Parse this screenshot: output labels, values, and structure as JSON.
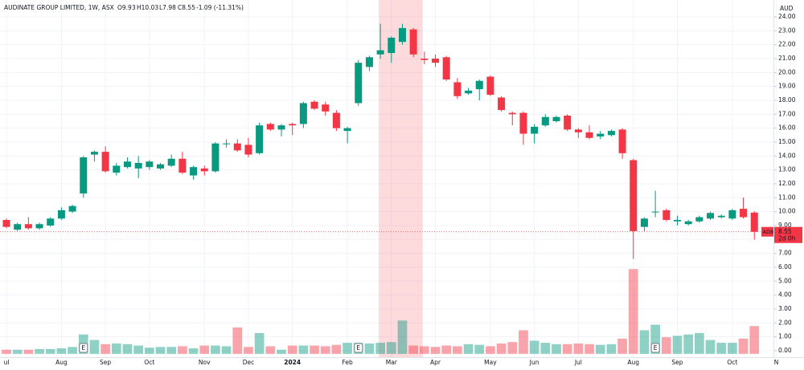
{
  "chart_data": {
    "type": "candlestick",
    "header": {
      "symbol": "AUDINATE GROUP LIMITED, 1W, ASX",
      "open": "O9.93",
      "high": "H10.03",
      "low": "L7.98",
      "close": "C8.55",
      "change": "-1.09 (-11.31%)"
    },
    "currency": "AUD",
    "up_color": "#089981",
    "down_color": "#f23645",
    "open": [
      9.4,
      8.7,
      9.1,
      8.8,
      9.0,
      9.5,
      10.0,
      11.3,
      14.1,
      14.3,
      12.8,
      13.2,
      13.1,
      13.2,
      13.1,
      13.3,
      13.8,
      12.6,
      13.1,
      12.9,
      14.9,
      14.9,
      14.8,
      14.2,
      16.3,
      15.9,
      16.3,
      16.3,
      17.9,
      17.7,
      17.1,
      15.8,
      17.8,
      20.4,
      21.3,
      21.4,
      22.2,
      23.1,
      21.0,
      21.0,
      21.1,
      19.3,
      18.5,
      18.8,
      19.7,
      18.2,
      17.1,
      17.1,
      15.6,
      16.2,
      16.5,
      16.9,
      15.9,
      15.7,
      15.4,
      15.5,
      15.9,
      13.7,
      8.9,
      10.0,
      10.1,
      9.3,
      9.1,
      9.3,
      9.5,
      9.6,
      9.5,
      10.2,
      9.93
    ],
    "high": [
      9.5,
      9.2,
      9.6,
      9.2,
      9.6,
      10.3,
      10.5,
      14.0,
      14.4,
      14.7,
      13.5,
      13.9,
      14.0,
      13.7,
      13.5,
      14.1,
      14.3,
      13.3,
      13.3,
      15.0,
      15.2,
      15.2,
      15.3,
      16.4,
      16.4,
      16.3,
      16.4,
      17.9,
      18.0,
      17.9,
      17.3,
      16.1,
      20.9,
      21.2,
      23.5,
      22.6,
      23.5,
      23.2,
      21.5,
      21.3,
      21.2,
      19.6,
      18.9,
      19.5,
      19.8,
      18.3,
      17.2,
      17.2,
      16.3,
      17.0,
      16.9,
      17.0,
      16.0,
      16.2,
      15.8,
      15.9,
      16.0,
      13.8,
      9.6,
      11.5,
      10.2,
      9.7,
      9.4,
      9.7,
      10.0,
      9.8,
      10.2,
      11.0,
      10.03
    ],
    "low": [
      8.8,
      8.6,
      8.7,
      8.7,
      8.9,
      9.4,
      9.9,
      11.0,
      13.6,
      12.8,
      12.6,
      13.1,
      12.4,
      13.0,
      13.0,
      13.2,
      12.7,
      12.3,
      12.6,
      12.8,
      14.6,
      14.3,
      13.9,
      14.1,
      15.8,
      15.4,
      15.5,
      16.0,
      17.3,
      16.9,
      15.8,
      14.9,
      17.6,
      20.1,
      21.0,
      20.7,
      22.0,
      21.1,
      20.6,
      20.4,
      19.4,
      18.1,
      18.4,
      18.0,
      18.3,
      17.2,
      16.2,
      14.8,
      14.9,
      16.1,
      16.4,
      15.8,
      15.3,
      15.2,
      15.2,
      15.4,
      13.8,
      6.6,
      8.6,
      9.6,
      9.3,
      9.0,
      9.0,
      9.2,
      9.4,
      9.5,
      9.4,
      9.5,
      7.98
    ],
    "close": [
      8.9,
      9.1,
      8.8,
      9.1,
      9.5,
      10.1,
      10.4,
      13.9,
      14.3,
      12.9,
      13.3,
      13.6,
      13.5,
      13.6,
      13.4,
      13.8,
      12.8,
      13.2,
      12.9,
      14.9,
      14.9,
      14.4,
      14.1,
      16.2,
      15.9,
      16.2,
      16.2,
      17.8,
      17.4,
      17.2,
      16.0,
      16.0,
      20.7,
      21.1,
      21.6,
      22.5,
      23.2,
      21.3,
      20.9,
      20.7,
      19.5,
      18.3,
      18.7,
      19.4,
      18.4,
      17.3,
      17.0,
      15.6,
      16.1,
      16.8,
      16.8,
      15.9,
      15.7,
      15.3,
      15.6,
      15.8,
      14.2,
      8.6,
      9.5,
      10.0,
      9.4,
      9.4,
      9.3,
      9.6,
      9.9,
      9.7,
      10.1,
      9.6,
      8.55
    ],
    "volume": [
      0.3,
      0.3,
      0.3,
      0.35,
      0.35,
      0.4,
      0.5,
      1.4,
      1.0,
      0.7,
      0.75,
      0.7,
      0.6,
      0.45,
      0.5,
      0.5,
      0.55,
      0.4,
      0.6,
      0.6,
      0.55,
      1.9,
      0.5,
      1.5,
      0.55,
      0.3,
      0.6,
      0.6,
      0.6,
      0.55,
      0.65,
      0.8,
      0.8,
      0.75,
      0.8,
      0.85,
      2.4,
      0.6,
      0.55,
      0.5,
      0.6,
      0.55,
      0.7,
      0.65,
      0.55,
      0.75,
      0.85,
      1.7,
      0.95,
      0.8,
      0.7,
      0.7,
      0.75,
      0.7,
      0.65,
      0.7,
      1.1,
      6.1,
      1.7,
      2.1,
      1.2,
      1.3,
      1.4,
      1.5,
      1.0,
      0.8,
      0.8,
      1.1,
      2.0
    ],
    "x_labels": [
      {
        "index": 0,
        "label": "ul"
      },
      {
        "index": 5,
        "label": "Aug"
      },
      {
        "index": 9,
        "label": "Sep"
      },
      {
        "index": 13,
        "label": "Oct"
      },
      {
        "index": 18,
        "label": "Nov"
      },
      {
        "index": 22,
        "label": "Dec"
      },
      {
        "index": 26,
        "label": "2024"
      },
      {
        "index": 31,
        "label": "Feb"
      },
      {
        "index": 35,
        "label": "Mar"
      },
      {
        "index": 39,
        "label": "Apr"
      },
      {
        "index": 44,
        "label": "May"
      },
      {
        "index": 48,
        "label": "Jun"
      },
      {
        "index": 52,
        "label": "Jul"
      },
      {
        "index": 57,
        "label": "Aug"
      },
      {
        "index": 61,
        "label": "Sep"
      },
      {
        "index": 66,
        "label": "Oct"
      },
      {
        "index": 70,
        "label": "N"
      }
    ],
    "earnings": [
      {
        "index": 7,
        "label": "E"
      },
      {
        "index": 32,
        "label": "E"
      },
      {
        "index": 59,
        "label": "E"
      }
    ],
    "highlight_range": [
      34,
      37
    ],
    "price_label": {
      "symbol": "AD8",
      "price": "8.55",
      "countdown": "2d 0h"
    },
    "ylim": [
      -0.35,
      25.04
    ],
    "yticks": [
      {
        "value": 0,
        "label": "0.00"
      },
      {
        "value": 1,
        "label": "1.00"
      },
      {
        "value": 2,
        "label": "2.00"
      },
      {
        "value": 3,
        "label": "3.00"
      },
      {
        "value": 4,
        "label": "4.00"
      },
      {
        "value": 5,
        "label": "5.00"
      },
      {
        "value": 6,
        "label": "6.00"
      },
      {
        "value": 7,
        "label": "7.00"
      },
      {
        "value": 8,
        "label": "8.00"
      },
      {
        "value": 9,
        "label": "9.00"
      },
      {
        "value": 10,
        "label": "10.00"
      },
      {
        "value": 11,
        "label": "11.00"
      },
      {
        "value": 12,
        "label": "12.00"
      },
      {
        "value": 13,
        "label": "13.00"
      },
      {
        "value": 14,
        "label": "14.00"
      },
      {
        "value": 15,
        "label": "15.00"
      },
      {
        "value": 16,
        "label": "16.00"
      },
      {
        "value": 17,
        "label": "17.00"
      },
      {
        "value": 18,
        "label": "18.00"
      },
      {
        "value": 19,
        "label": "19.00"
      },
      {
        "value": 20,
        "label": "20.00"
      },
      {
        "value": 21,
        "label": "21.00"
      },
      {
        "value": 22,
        "label": "22.00"
      },
      {
        "value": 23,
        "label": "23.00"
      },
      {
        "value": 24,
        "label": "24.00"
      }
    ],
    "grid": true
  }
}
